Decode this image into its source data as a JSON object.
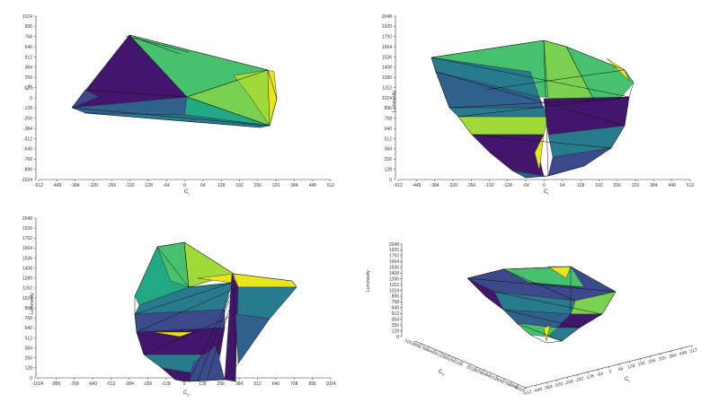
{
  "colors": {
    "purple": "#43166e",
    "indigo": "#3b4a8b",
    "teal": "#287b8c",
    "blue": "#30618c",
    "green": "#47c16e",
    "lightgreen": "#7ad151",
    "lime": "#a0da39",
    "yellow": "#e8e41d",
    "midgreen": "#22a884",
    "edge": "#111111"
  },
  "panels": {
    "top_left": {
      "x_label": "C",
      "x_label_sub": "t",
      "y_label": "C",
      "y_label_sub": "p",
      "x_ticks": [
        "-512",
        "-448",
        "-384",
        "-320",
        "-256",
        "-192",
        "-128",
        "-64",
        "0",
        "64",
        "128",
        "192",
        "256",
        "320",
        "384",
        "448",
        "512"
      ],
      "y_ticks": [
        "1024",
        "896",
        "768",
        "640",
        "512",
        "384",
        "256",
        "128",
        "0",
        "-128",
        "-256",
        "-384",
        "-512",
        "-640",
        "-768",
        "-896",
        "-1024"
      ]
    },
    "top_right": {
      "x_label": "C",
      "x_label_sub": "t",
      "y_label": "Luminosity",
      "x_ticks": [
        "-512",
        "-448",
        "-384",
        "-320",
        "-256",
        "-192",
        "-128",
        "-64",
        "0",
        "64",
        "128",
        "192",
        "256",
        "320",
        "384",
        "448",
        "512"
      ],
      "y_ticks": [
        "2048",
        "1920",
        "1792",
        "1664",
        "1536",
        "1408",
        "1280",
        "1152",
        "1024",
        "896",
        "768",
        "640",
        "512",
        "384",
        "256",
        "128",
        "0"
      ]
    },
    "bottom_left": {
      "x_label": "C",
      "x_label_sub": "p",
      "y_label": "Luminosity",
      "x_ticks": [
        "-1024",
        "-896",
        "-768",
        "-640",
        "-512",
        "-384",
        "-256",
        "-128",
        "0",
        "128",
        "256",
        "384",
        "512",
        "640",
        "768",
        "896",
        "1024"
      ],
      "y_ticks": [
        "2048",
        "1920",
        "1792",
        "1664",
        "1536",
        "1408",
        "1280",
        "1152",
        "1024",
        "896",
        "768",
        "640",
        "512",
        "384",
        "256",
        "128",
        "0"
      ]
    },
    "bottom_right": {
      "y_label": "Luminosity",
      "cp_label": "C",
      "cp_label_sub": "p",
      "ct_label": "C",
      "ct_label_sub": "t",
      "z_ticks": [
        "2048",
        "1920",
        "1792",
        "1664",
        "1536",
        "1408",
        "1280",
        "1152",
        "1024",
        "896",
        "768",
        "640",
        "512",
        "384",
        "256",
        "128",
        "0"
      ],
      "cp_ticks": [
        "1024",
        "896",
        "768",
        "640",
        "512",
        "384",
        "256",
        "128",
        "0",
        "-128",
        "-256",
        "-384",
        "-512",
        "-640",
        "-768",
        "-896",
        "-1024"
      ],
      "ct_ticks": [
        "-512",
        "-448",
        "-384",
        "-320",
        "-256",
        "-192",
        "-128",
        "-64",
        "0",
        "64",
        "128",
        "192",
        "256",
        "320",
        "384",
        "448",
        "512"
      ]
    }
  }
}
